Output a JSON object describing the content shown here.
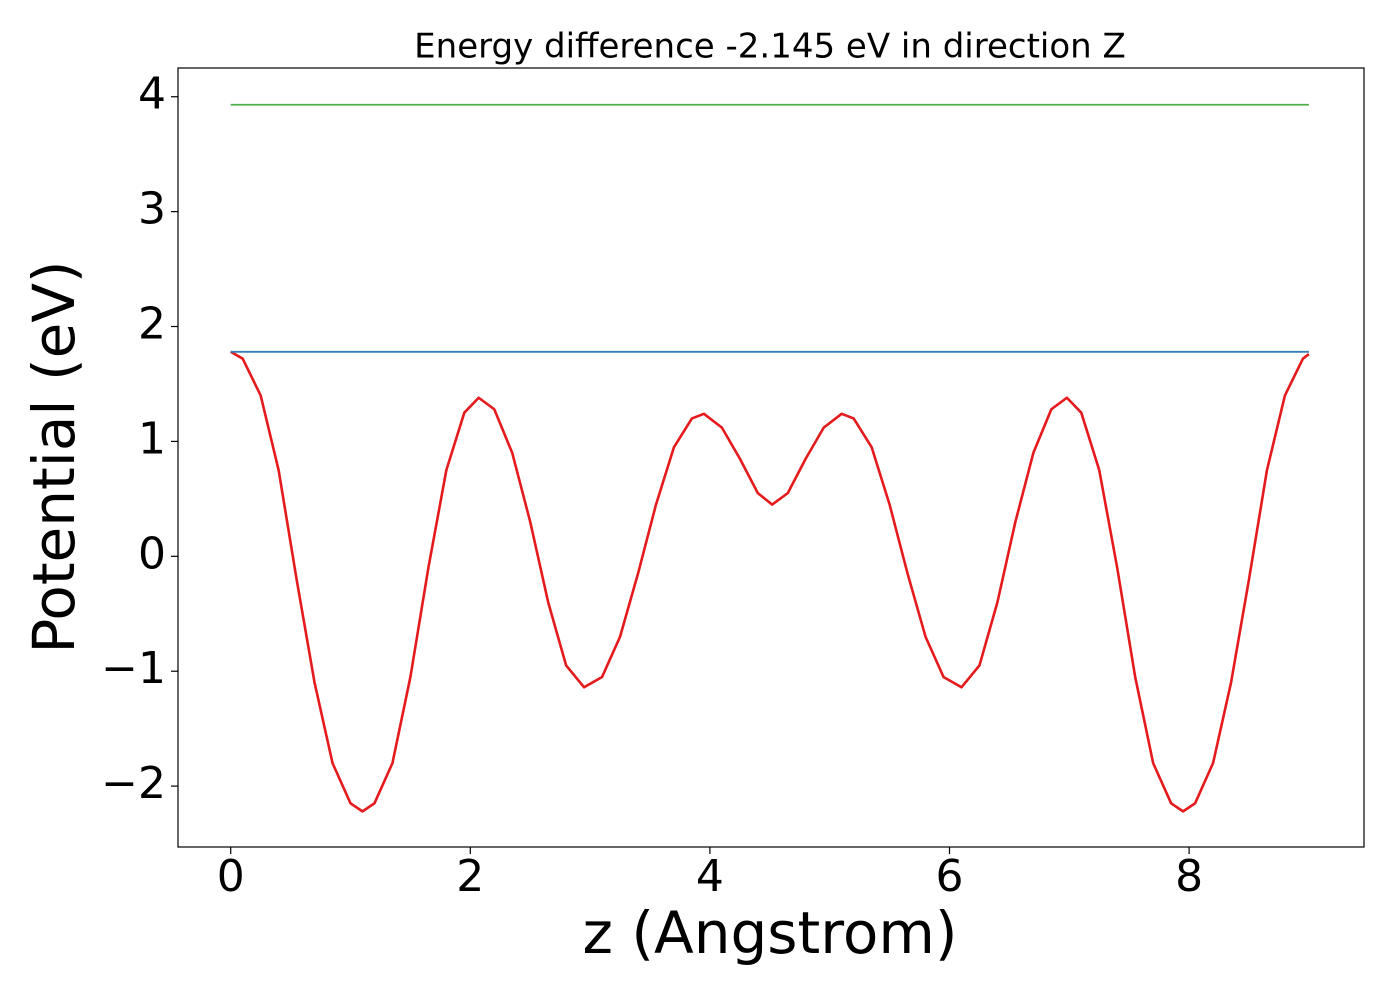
{
  "chart_data": {
    "type": "line",
    "title": "Energy difference -2.145 eV in direction Z",
    "x_label": "z (Angstrom)",
    "y_label": "Potential (eV)",
    "xlim": [
      -0.44,
      9.46
    ],
    "ylim": [
      -2.53,
      4.25
    ],
    "xticks": [
      0,
      2,
      4,
      6,
      8
    ],
    "yticks": [
      {
        "value": -2,
        "label": "−2"
      },
      {
        "value": -1,
        "label": "−1"
      },
      0,
      1,
      2,
      3,
      4
    ],
    "series": [
      {
        "color": "#e41a1c",
        "x": [
          0,
          0.1,
          0.25,
          0.4,
          0.55,
          0.7,
          0.85,
          1.0,
          1.1,
          1.2,
          1.35,
          1.5,
          1.65,
          1.8,
          1.95,
          2.07,
          2.2,
          2.35,
          2.5,
          2.65,
          2.8,
          2.95,
          3.1,
          3.25,
          3.4,
          3.55,
          3.7,
          3.85,
          3.95,
          4.1,
          4.25,
          4.4,
          4.52,
          4.65,
          4.8,
          4.95,
          5.1,
          5.2,
          5.35,
          5.5,
          5.65,
          5.8,
          5.95,
          6.1,
          6.25,
          6.4,
          6.55,
          6.7,
          6.85,
          6.98,
          7.1,
          7.25,
          7.4,
          7.55,
          7.7,
          7.85,
          7.95,
          8.05,
          8.2,
          8.35,
          8.5,
          8.65,
          8.8,
          8.95,
          9.0
        ],
        "values": [
          1.78,
          1.72,
          1.4,
          0.75,
          -0.2,
          -1.1,
          -1.8,
          -2.15,
          -2.22,
          -2.15,
          -1.8,
          -1.05,
          -0.1,
          0.75,
          1.25,
          1.38,
          1.28,
          0.9,
          0.3,
          -0.4,
          -0.95,
          -1.14,
          -1.05,
          -0.7,
          -0.15,
          0.45,
          0.95,
          1.2,
          1.24,
          1.12,
          0.85,
          0.55,
          0.45,
          0.55,
          0.85,
          1.12,
          1.24,
          1.2,
          0.95,
          0.45,
          -0.15,
          -0.7,
          -1.05,
          -1.14,
          -0.95,
          -0.4,
          0.3,
          0.9,
          1.28,
          1.38,
          1.25,
          0.75,
          -0.1,
          -1.05,
          -1.8,
          -2.15,
          -2.22,
          -2.15,
          -1.8,
          -1.1,
          -0.2,
          0.75,
          1.4,
          1.72,
          1.76
        ]
      },
      {
        "color": "#377eb8",
        "x": [
          0,
          9
        ],
        "values": [
          1.78,
          1.78
        ]
      },
      {
        "color": "#4daf4a",
        "x": [
          0,
          9
        ],
        "values": [
          3.93,
          3.93
        ]
      }
    ]
  }
}
